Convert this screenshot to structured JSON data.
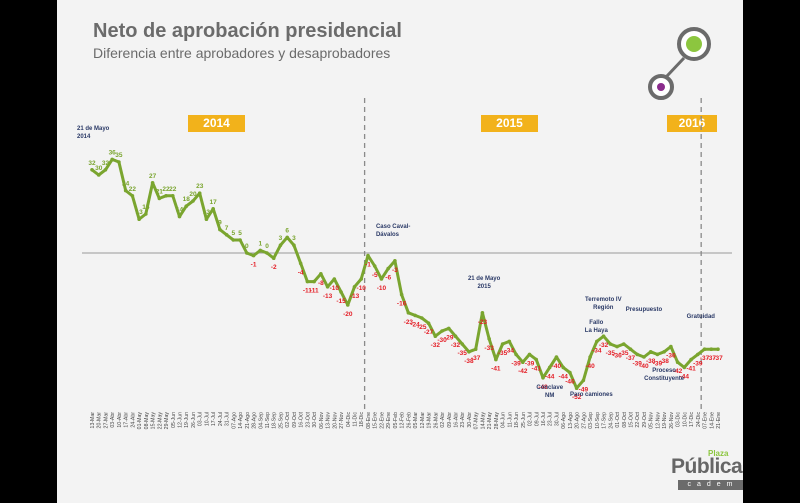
{
  "title": "Neto de aprobación presidencial",
  "subtitle": "Diferencia entre aprobadores y desaprobadores",
  "years": [
    "2014",
    "2015",
    "2016"
  ],
  "logo": {
    "main": "Pública",
    "sup": "Plaza",
    "sub": "cadem"
  },
  "colors": {
    "line": "#7aa52f",
    "positive": "#7aa52f",
    "negative": "#e41e26",
    "year_box": "#f2b21b",
    "accent_green": "#8cc63f",
    "accent_purple": "#8a2b8c"
  },
  "chart_data": {
    "type": "line",
    "title": "Neto de aprobación presidencial",
    "subtitle": "Diferencia entre aprobadores y desaprobadores",
    "xlabel": "",
    "ylabel": "",
    "ylim": [
      -60,
      45
    ],
    "grid": false,
    "x": [
      "13-Mar",
      "20-Mar",
      "27-Mar",
      "03-Abr",
      "10-Abr",
      "17-Abr",
      "24-Abr",
      "01-May",
      "08-May",
      "15-May",
      "22-May",
      "29-May",
      "05-Jun",
      "12-Jun",
      "19-Jun",
      "26-Jun",
      "03-Jul",
      "10-Jul",
      "17-Jul",
      "24-Jul",
      "31-Jul",
      "07-Ago",
      "14-Ago",
      "21-Ago",
      "28-Ago",
      "04-Sep",
      "11-Sep",
      "18-Sep",
      "25-Sep",
      "02-Oct",
      "09-Oct",
      "16-Oct",
      "23-Oct",
      "30-Oct",
      "06-Nov",
      "13-Nov",
      "20-Nov",
      "27-Nov",
      "04-Dic",
      "11-Dic",
      "18-Dic",
      "08-Ene",
      "15-Ene",
      "22-Ene",
      "29-Ene",
      "05-Feb",
      "12-Feb",
      "26-Feb",
      "05-Mar",
      "12-Mar",
      "19-Mar",
      "26-Mar",
      "02-Abr",
      "09-Abr",
      "16-Abr",
      "23-Abr",
      "30-Abr",
      "07-May",
      "14-May",
      "21-May",
      "28-May",
      "04-Jun",
      "11-Jun",
      "18-Jun",
      "25-Jun",
      "02-Jul",
      "09-Jul",
      "16-Jul",
      "23-Jul",
      "30-Jul",
      "06-Ago",
      "13-Ago",
      "20-Ago",
      "27-Ago",
      "03-Sep",
      "10-Sep",
      "17-Sep",
      "24-Sep",
      "01-Oct",
      "08-Oct",
      "15-Oct",
      "22-Oct",
      "29-Oct",
      "05-Nov",
      "12-Nov",
      "19-Nov",
      "26-Nov",
      "03-Dic",
      "10-Dic",
      "17-Dic",
      "24-Dic",
      "07-Ene",
      "14-Ene",
      "21-Ene"
    ],
    "values": [
      32,
      30,
      32,
      36,
      35,
      24,
      22,
      13,
      15,
      27,
      21,
      22,
      22,
      14,
      18,
      20,
      23,
      13,
      17,
      9,
      7,
      5,
      5,
      0,
      -1,
      1,
      0,
      -2,
      3,
      6,
      3,
      -4,
      -11,
      -11,
      -8,
      -13,
      -10,
      -15,
      -20,
      -13,
      -10,
      -1,
      -5,
      -10,
      -6,
      -3,
      -16,
      -23,
      -24,
      -25,
      -27,
      -32,
      -30,
      -29,
      -32,
      -35,
      -38,
      -37,
      -23,
      -33,
      -41,
      -35,
      -34,
      -39,
      -42,
      -39,
      -41,
      -48,
      -44,
      -40,
      -44,
      -46,
      -52,
      -49,
      -40,
      -34,
      -32,
      -35,
      -36,
      -35,
      -37,
      -39,
      -40,
      -38,
      -39,
      -38,
      -36,
      -42,
      -44,
      -41,
      -39,
      -37,
      -37,
      -37
    ],
    "annotations": [
      {
        "text": "21 de Mayo 2014",
        "x": "15-May"
      },
      {
        "text": "Caso Caval-Dávalos",
        "x": "08-Ene"
      },
      {
        "text": "21 de Mayo 2015",
        "x": "21-May"
      },
      {
        "text": "Cónclave NM",
        "x": "23-Jul"
      },
      {
        "text": "Paro camiones",
        "x": "27-Ago"
      },
      {
        "text": "Fallo La Haya",
        "x": "24-Sep"
      },
      {
        "text": "Terremoto IV Región",
        "x": "24-Sep"
      },
      {
        "text": "Presupuesto",
        "x": "29-Oct"
      },
      {
        "text": "Proceso Constituyente",
        "x": "19-Nov"
      },
      {
        "text": "Gratuidad",
        "x": "24-Dic"
      }
    ],
    "year_dividers": [
      "08-Ene",
      "07-Ene"
    ]
  }
}
